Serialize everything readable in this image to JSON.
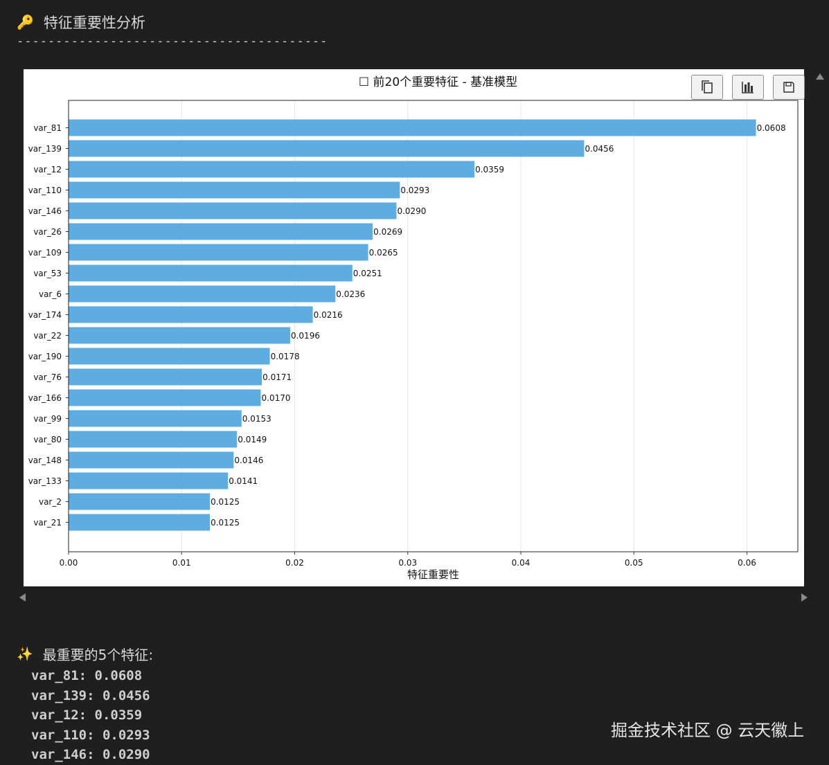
{
  "header": {
    "icon": "key-icon",
    "title": "特征重要性分析",
    "divider": "----------------------------------------"
  },
  "toolbar": {
    "buttons": [
      {
        "name": "copy-button",
        "icon": "copy-icon"
      },
      {
        "name": "chart-button",
        "icon": "bar-chart-icon"
      },
      {
        "name": "save-button",
        "icon": "save-icon"
      }
    ]
  },
  "chart_data": {
    "type": "bar",
    "orientation": "horizontal",
    "title": "☐ 前20个重要特征 - 基准模型",
    "xlabel": "特征重要性",
    "ylabel": "",
    "xlim": [
      0,
      0.0645
    ],
    "xticks": [
      0.0,
      0.01,
      0.02,
      0.03,
      0.04,
      0.05,
      0.06
    ],
    "xtick_labels": [
      "0.00",
      "0.01",
      "0.02",
      "0.03",
      "0.04",
      "0.05",
      "0.06"
    ],
    "grid": "x-axis vertical lines",
    "bar_color": "#5dade2",
    "categories": [
      "var_81",
      "var_139",
      "var_12",
      "var_110",
      "var_146",
      "var_26",
      "var_109",
      "var_53",
      "var_6",
      "var_174",
      "var_22",
      "var_190",
      "var_76",
      "var_166",
      "var_99",
      "var_80",
      "var_148",
      "var_133",
      "var_2",
      "var_21"
    ],
    "values": [
      0.0608,
      0.0456,
      0.0359,
      0.0293,
      0.029,
      0.0269,
      0.0265,
      0.0251,
      0.0236,
      0.0216,
      0.0196,
      0.0178,
      0.0171,
      0.017,
      0.0153,
      0.0149,
      0.0146,
      0.0141,
      0.0125,
      0.0125
    ],
    "value_labels": [
      "0.0608",
      "0.0456",
      "0.0359",
      "0.0293",
      "0.0290",
      "0.0269",
      "0.0265",
      "0.0251",
      "0.0236",
      "0.0216",
      "0.0196",
      "0.0178",
      "0.0171",
      "0.0170",
      "0.0153",
      "0.0149",
      "0.0146",
      "0.0141",
      "0.0125",
      "0.0125"
    ]
  },
  "summary": {
    "icon": "sparkles-icon",
    "title": "最重要的5个特征:",
    "items": [
      "var_81: 0.0608",
      "var_139: 0.0456",
      "var_12: 0.0359",
      "var_110: 0.0293",
      "var_146: 0.0290"
    ]
  },
  "watermark": "掘金技术社区 @ 云天徽上"
}
